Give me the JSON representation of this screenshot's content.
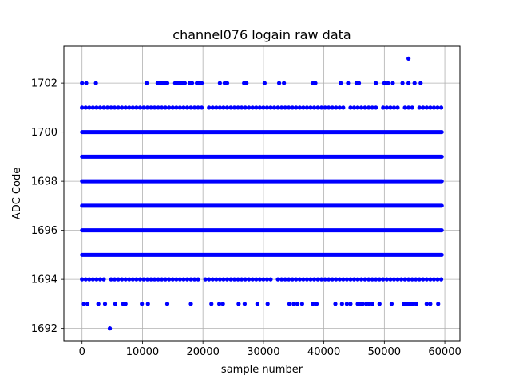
{
  "chart_data": {
    "type": "scatter",
    "title": "channel076 logain raw data",
    "xlabel": "sample number",
    "ylabel": "ADC Code",
    "xlim": [
      -3000,
      62500
    ],
    "ylim": [
      1691.5,
      1703.5
    ],
    "xticks": [
      0,
      10000,
      20000,
      30000,
      40000,
      50000,
      60000
    ],
    "yticks": [
      1692,
      1694,
      1696,
      1698,
      1700,
      1702
    ],
    "grid": true,
    "marker_color": "#0000ff",
    "dense_levels": [
      {
        "y": 1695,
        "x_range": [
          0,
          59500
        ]
      },
      {
        "y": 1696,
        "x_range": [
          0,
          59500
        ]
      },
      {
        "y": 1697,
        "x_range": [
          0,
          59500
        ]
      },
      {
        "y": 1698,
        "x_range": [
          0,
          59500
        ]
      },
      {
        "y": 1699,
        "x_range": [
          0,
          59500
        ]
      },
      {
        "y": 1700,
        "x_range": [
          0,
          59500
        ]
      }
    ],
    "sparse_levels": [
      {
        "y": 1701,
        "x": [
          0,
          600,
          1200,
          1800,
          2400,
          3000,
          3600,
          4200,
          4800,
          5400,
          6000,
          6600,
          7200,
          7800,
          8400,
          9000,
          9600,
          10200,
          10800,
          11400,
          12000,
          12600,
          13200,
          13800,
          14400,
          15000,
          15600,
          16200,
          16800,
          17400,
          18000,
          18600,
          19200,
          19800,
          21000,
          21600,
          22200,
          22800,
          23400,
          24000,
          24600,
          25200,
          25800,
          26400,
          27000,
          27600,
          28200,
          28800,
          29400,
          30000,
          30600,
          31200,
          31800,
          32400,
          33000,
          33600,
          34200,
          34800,
          35400,
          36000,
          36600,
          37200,
          37800,
          38400,
          39000,
          39600,
          40200,
          40800,
          41400,
          42000,
          42600,
          43200,
          44400,
          45000,
          45600,
          46200,
          46800,
          47400,
          48000,
          48600,
          49800,
          50400,
          51000,
          51600,
          52200,
          53400,
          54000,
          54600,
          55800,
          56400,
          57000,
          57600,
          58200,
          58800,
          59400
        ]
      },
      {
        "y": 1694,
        "x": [
          0,
          600,
          1200,
          1800,
          2400,
          3000,
          3600,
          4800,
          5400,
          6000,
          6600,
          7200,
          7800,
          8400,
          9000,
          9600,
          10200,
          10800,
          11400,
          12000,
          12600,
          13200,
          13800,
          14400,
          15000,
          15600,
          16200,
          16800,
          17400,
          18000,
          18600,
          19200,
          20400,
          21000,
          21600,
          22200,
          22800,
          23400,
          24000,
          24600,
          25200,
          25800,
          26400,
          27000,
          27600,
          28200,
          28800,
          29400,
          30000,
          30600,
          31200,
          32400,
          33000,
          33600,
          34200,
          34800,
          35400,
          36000,
          36600,
          37200,
          37800,
          38400,
          39000,
          39600,
          40200,
          40800,
          41400,
          42000,
          42600,
          43200,
          43800,
          44400,
          45000,
          45600,
          46200,
          46800,
          47400,
          48000,
          48600,
          49200,
          49800,
          50400,
          51000,
          51600,
          52200,
          52800,
          53400,
          54000,
          54600,
          55200,
          55800,
          56400,
          57000,
          57600,
          58200,
          58800,
          59400
        ]
      },
      {
        "y": 1702,
        "x": [
          0,
          700,
          2300,
          10700,
          12500,
          12900,
          13300,
          13700,
          14100,
          15400,
          15800,
          16200,
          16600,
          17000,
          17800,
          18200,
          19000,
          19400,
          19800,
          22800,
          23600,
          24000,
          26800,
          27200,
          30200,
          32600,
          33400,
          38200,
          38600,
          42800,
          44000,
          45400,
          45800,
          48600,
          50000,
          50600,
          51400,
          53000,
          54000,
          55000,
          56000
        ]
      },
      {
        "y": 1703,
        "x": [
          54000
        ]
      },
      {
        "y": 1693,
        "x": [
          300,
          900,
          2700,
          3800,
          5500,
          6800,
          7200,
          9900,
          10900,
          14100,
          18000,
          21400,
          22700,
          23300,
          25900,
          26900,
          29000,
          30700,
          34300,
          35000,
          35600,
          36400,
          38200,
          38800,
          41900,
          43000,
          43800,
          44400,
          45600,
          46000,
          46400,
          47000,
          47500,
          48000,
          49200,
          51200,
          53200,
          53600,
          54000,
          54400,
          54800,
          55300,
          57000,
          57600,
          58900
        ]
      },
      {
        "y": 1692,
        "x": [
          4600
        ]
      }
    ]
  }
}
